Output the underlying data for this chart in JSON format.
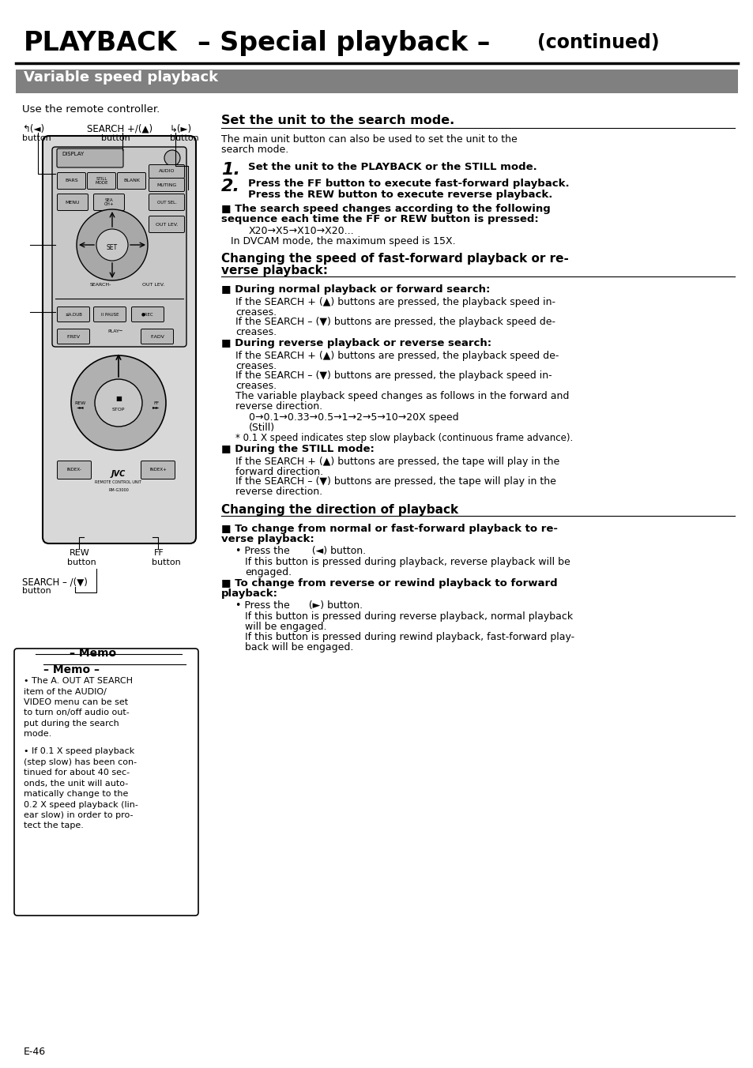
{
  "title_left": "PLAYBACK",
  "title_mid": "– Special playback –",
  "title_right": "(continued)",
  "section_header": "Variable speed playback",
  "section_bg": "#808080",
  "section_text_color": "#ffffff",
  "page_bg": "#ffffff",
  "use_remote": "Use the remote controller.",
  "search_heading": "Set the unit to the search mode.",
  "search_desc1": "The main unit button can also be used to set the unit to the",
  "search_desc2": "search mode.",
  "step1": "Set the unit to the PLAYBACK or the STILL mode.",
  "step2_a": "Press the FF button to execute fast-forward playback.",
  "step2_b": "Press the REW button to execute reverse playback.",
  "bullet1_head1": "■ The search speed changes according to the following",
  "bullet1_head2": "sequence each time the FF or REW button is pressed:",
  "bullet1_seq": "X20→X5→X10→X20...",
  "bullet1_dvcam": "In DVCAM mode, the maximum speed is 15X.",
  "change_speed_head1": "Changing the speed of fast-forward playback or re-",
  "change_speed_head2": "verse playback:",
  "normal_head": "■ During normal playback or forward search:",
  "normal_text1a": "If the SEARCH + (▲) buttons are pressed, the playback speed in-",
  "normal_text1b": "creases.",
  "normal_text2a": "If the SEARCH – (▼) buttons are pressed, the playback speed de-",
  "normal_text2b": "creases.",
  "reverse_head": "■ During reverse playback or reverse search:",
  "reverse_text1a": "If the SEARCH + (▲) buttons are pressed, the playback speed de-",
  "reverse_text1b": "creases.",
  "reverse_text2a": "If the SEARCH – (▼) buttons are pressed, the playback speed in-",
  "reverse_text2b": "creases.",
  "reverse_text3a": "The variable playback speed changes as follows in the forward and",
  "reverse_text3b": "reverse direction.",
  "speed_seq": "0→0.1→0.33→0.5→1→2→5→10→20X speed",
  "speed_still": "(Still)",
  "speed_note": "* 0.1 X speed indicates step slow playback (continuous frame advance).",
  "still_head": "■ During the STILL mode:",
  "still_text1a": "If the SEARCH + (▲) buttons are pressed, the tape will play in the",
  "still_text1b": "forward direction.",
  "still_text2a": "If the SEARCH – (▼) buttons are pressed, the tape will play in the",
  "still_text2b": "reverse direction.",
  "direction_head": "Changing the direction of playback",
  "fwd_head1": "■ To change from normal or fast-forward playback to re-",
  "fwd_head2": "verse playback:",
  "fwd_bullet": "• Press the       (◄) button.",
  "fwd_text1": "If this button is pressed during playback, reverse playback will be",
  "fwd_text2": "engaged.",
  "rev_head1": "■ To change from reverse or rewind playback to forward",
  "rev_head2": "playback:",
  "rev_bullet": "• Press the      (►) button.",
  "rev_text1a": "If this button is pressed during reverse playback, normal playback",
  "rev_text1b": "will be engaged.",
  "rev_text2a": "If this button is pressed during rewind playback, fast-forward play-",
  "rev_text2b": "back will be engaged.",
  "memo_head": "Memo",
  "memo1a": "• The A. OUT AT SEARCH",
  "memo1b": "item of the AUDIO/",
  "memo1c": "VIDEO menu can be set",
  "memo1d": "to turn on/off audio out-",
  "memo1e": "put during the search",
  "memo1f": "mode.",
  "memo2a": "• If 0.1 X speed playback",
  "memo2b": "(step slow) has been con-",
  "memo2c": "tinued for about 40 sec-",
  "memo2d": "onds, the unit will auto-",
  "memo2e": "matically change to the",
  "memo2f": "0.2 X speed playback (lin-",
  "memo2g": "ear slow) in order to pro-",
  "memo2h": "tect the tape.",
  "page_num": "E-46"
}
